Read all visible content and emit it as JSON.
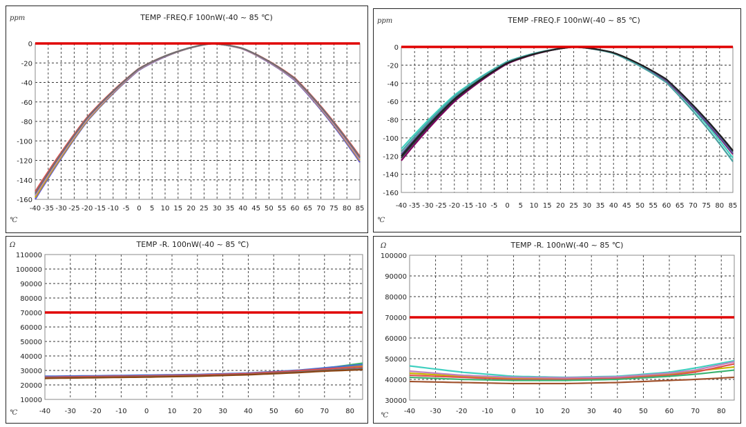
{
  "chart_data": [
    {
      "type": "line",
      "title": "TEMP -FREQ.F 100nW(-40 ~ 85 ℃)",
      "ylabel": "ppm",
      "xlabel": "℃",
      "x_ticks": [
        "-40",
        "-35",
        "-30",
        "-25",
        "-20",
        "-15",
        "-10",
        "-5",
        "0",
        "5",
        "10",
        "15",
        "20",
        "25",
        "30",
        "35",
        "40",
        "45",
        "50",
        "55",
        "60",
        "65",
        "70",
        "75",
        "80",
        "85"
      ],
      "y_ticks": [
        "0",
        "-20",
        "-40",
        "-60",
        "-80",
        "-100",
        "-120",
        "-140",
        "-160"
      ],
      "xlim": [
        -40,
        85
      ],
      "ylim": [
        -160,
        0
      ],
      "grid": true,
      "reference_line": {
        "y": 0,
        "color": "#e00000"
      },
      "curve_model": {
        "type": "parabola",
        "vertex_x": 28,
        "vertex_y": 0
      },
      "x": [
        -40,
        -20,
        0,
        28,
        40,
        60,
        85
      ],
      "series": [
        {
          "color": "#6a5acd",
          "values": [
            -160,
            -80,
            -27,
            0,
            -6,
            -37,
            -122
          ]
        },
        {
          "color": "#3cb371",
          "values": [
            -155,
            -77,
            -25,
            0,
            -5,
            -35,
            -118
          ]
        },
        {
          "color": "#c8b400",
          "values": [
            -158,
            -79,
            -26,
            0,
            -6,
            -36,
            -120
          ]
        },
        {
          "color": "#e05050",
          "values": [
            -152,
            -75,
            -25,
            0,
            -5,
            -34,
            -116
          ]
        },
        {
          "color": "#c080c0",
          "values": [
            -156,
            -78,
            -26,
            0,
            -6,
            -36,
            -119
          ]
        },
        {
          "color": "#707070",
          "values": [
            -154,
            -76,
            -25,
            0,
            -5,
            -35,
            -117
          ]
        }
      ]
    },
    {
      "type": "line",
      "title": "TEMP -FREQ.F 100nW(-40 ~ 85 ℃)",
      "ylabel": "ppm",
      "xlabel": "℃",
      "x_ticks": [
        "-40",
        "-35",
        "-30",
        "-25",
        "-20",
        "-15",
        "-10",
        "-5",
        "0",
        "5",
        "10",
        "15",
        "20",
        "25",
        "30",
        "35",
        "40",
        "45",
        "50",
        "55",
        "60",
        "65",
        "70",
        "75",
        "80",
        "85"
      ],
      "y_ticks": [
        "0",
        "-20",
        "-40",
        "-60",
        "-80",
        "-100",
        "-120",
        "-140",
        "-160"
      ],
      "xlim": [
        -40,
        85
      ],
      "ylim": [
        -160,
        0
      ],
      "grid": true,
      "reference_line": {
        "y": 0,
        "color": "#e00000"
      },
      "curve_model": {
        "type": "parabola",
        "vertex_x": 25,
        "vertex_y": 0
      },
      "x": [
        -40,
        -20,
        0,
        25,
        40,
        60,
        85
      ],
      "series": [
        {
          "color": "#40d0c0",
          "values": [
            -112,
            -52,
            -15,
            0,
            -5,
            -30,
            -122
          ]
        },
        {
          "color": "#800060",
          "values": [
            -125,
            -60,
            -18,
            0,
            -6,
            -33,
            -118
          ]
        },
        {
          "color": "#303040",
          "values": [
            -122,
            -58,
            -17,
            0,
            -5,
            -31,
            -115
          ]
        },
        {
          "color": "#5a5a9a",
          "values": [
            -118,
            -56,
            -16,
            0,
            -5,
            -32,
            -117
          ]
        },
        {
          "color": "#4aa0a0",
          "values": [
            -115,
            -54,
            -15,
            0,
            -6,
            -34,
            -126
          ]
        },
        {
          "color": "#202020",
          "values": [
            -120,
            -57,
            -17,
            0,
            -5,
            -31,
            -114
          ]
        }
      ]
    },
    {
      "type": "line",
      "title": "TEMP -R. 100nW(-40 ~ 85 ℃)",
      "ylabel": "Ω",
      "xlabel": "℃",
      "x_ticks": [
        "-40",
        "-30",
        "-20",
        "-10",
        "0",
        "10",
        "20",
        "30",
        "40",
        "50",
        "60",
        "70",
        "80"
      ],
      "y_ticks": [
        "110000",
        "100000",
        "90000",
        "80000",
        "70000",
        "60000",
        "50000",
        "40000",
        "30000",
        "20000",
        "10000"
      ],
      "xlim": [
        -40,
        85
      ],
      "ylim": [
        10000,
        110000
      ],
      "grid": true,
      "reference_line": {
        "y": 70000,
        "color": "#e00000"
      },
      "x": [
        -40,
        -20,
        0,
        20,
        40,
        60,
        70,
        85
      ],
      "series": [
        {
          "color": "#3cb371",
          "values": [
            25500,
            26000,
            26500,
            27000,
            28000,
            30000,
            31500,
            35000
          ]
        },
        {
          "color": "#c8b400",
          "values": [
            25000,
            25500,
            26000,
            26500,
            27500,
            29500,
            31000,
            33500
          ]
        },
        {
          "color": "#4a6fd0",
          "values": [
            26000,
            26300,
            26800,
            27200,
            28200,
            30200,
            31800,
            34000
          ]
        },
        {
          "color": "#e05050",
          "values": [
            25300,
            25800,
            26200,
            26800,
            27800,
            29800,
            31000,
            32500
          ]
        },
        {
          "color": "#707070",
          "values": [
            24800,
            25200,
            25700,
            26200,
            27200,
            29000,
            30000,
            31500
          ]
        },
        {
          "color": "#8b4513",
          "values": [
            24500,
            25000,
            25400,
            26000,
            27000,
            28500,
            29500,
            30500
          ]
        }
      ]
    },
    {
      "type": "line",
      "title": "TEMP -R. 100nW(-40 ~ 85 ℃)",
      "ylabel": "Ω",
      "xlabel": "℃",
      "x_ticks": [
        "-40",
        "-30",
        "-20",
        "-10",
        "0",
        "10",
        "20",
        "30",
        "40",
        "50",
        "60",
        "70",
        "80"
      ],
      "y_ticks": [
        "100000",
        "90000",
        "80000",
        "70000",
        "60000",
        "50000",
        "40000",
        "30000"
      ],
      "xlim": [
        -40,
        85
      ],
      "ylim": [
        30000,
        100000
      ],
      "grid": true,
      "reference_line": {
        "y": 70000,
        "color": "#e00000"
      },
      "x": [
        -40,
        -20,
        0,
        20,
        40,
        60,
        70,
        85
      ],
      "series": [
        {
          "color": "#40d0c0",
          "values": [
            46500,
            43500,
            41500,
            41000,
            41500,
            43500,
            45500,
            49000
          ]
        },
        {
          "color": "#c8b400",
          "values": [
            43000,
            41500,
            40500,
            40500,
            41000,
            42500,
            44000,
            46000
          ]
        },
        {
          "color": "#e05050",
          "values": [
            42000,
            41000,
            40000,
            40000,
            40500,
            42000,
            43500,
            47500
          ]
        },
        {
          "color": "#3cb371",
          "values": [
            41000,
            40000,
            39500,
            39500,
            40000,
            41500,
            42500,
            44500
          ]
        },
        {
          "color": "#c080c0",
          "values": [
            44000,
            42000,
            41000,
            40800,
            41200,
            43000,
            44500,
            48500
          ]
        },
        {
          "color": "#a0522d",
          "values": [
            39000,
            38500,
            38000,
            38000,
            38500,
            39500,
            40000,
            41000
          ]
        }
      ]
    }
  ]
}
